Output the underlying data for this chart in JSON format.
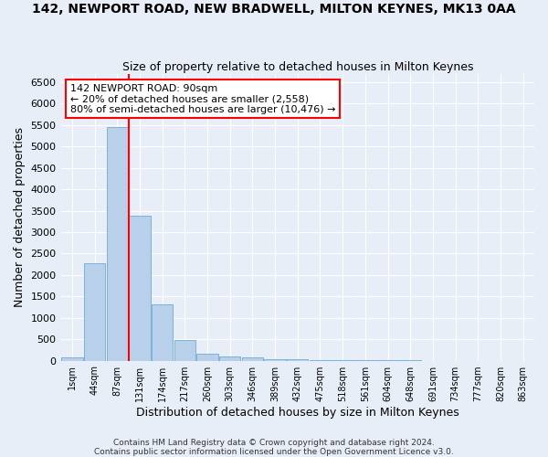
{
  "title": "142, NEWPORT ROAD, NEW BRADWELL, MILTON KEYNES, MK13 0AA",
  "subtitle": "Size of property relative to detached houses in Milton Keynes",
  "xlabel": "Distribution of detached houses by size in Milton Keynes",
  "ylabel": "Number of detached properties",
  "footer_line1": "Contains HM Land Registry data © Crown copyright and database right 2024.",
  "footer_line2": "Contains public sector information licensed under the Open Government Licence v3.0.",
  "bar_labels": [
    "1sqm",
    "44sqm",
    "87sqm",
    "131sqm",
    "174sqm",
    "217sqm",
    "260sqm",
    "303sqm",
    "346sqm",
    "389sqm",
    "432sqm",
    "475sqm",
    "518sqm",
    "561sqm",
    "604sqm",
    "648sqm",
    "691sqm",
    "734sqm",
    "777sqm",
    "820sqm",
    "863sqm"
  ],
  "bar_values": [
    75,
    2280,
    5450,
    3380,
    1310,
    480,
    165,
    95,
    70,
    35,
    25,
    15,
    10,
    5,
    3,
    2,
    1,
    1,
    0,
    0,
    0
  ],
  "bar_color": "#b8d0ea",
  "bar_edge_color": "#6baed6",
  "annotation_line1": "142 NEWPORT ROAD: 90sqm",
  "annotation_line2": "← 20% of detached houses are smaller (2,558)",
  "annotation_line3": "80% of semi-detached houses are larger (10,476) →",
  "annotation_box_color": "white",
  "annotation_box_edge": "red",
  "vline_color": "red",
  "vline_x": 2.5,
  "ylim_min": 0,
  "ylim_max": 6700,
  "yticks": [
    0,
    500,
    1000,
    1500,
    2000,
    2500,
    3000,
    3500,
    4000,
    4500,
    5000,
    5500,
    6000,
    6500
  ],
  "bg_color": "#e8eef8",
  "grid_color": "white",
  "title_fontsize": 10,
  "subtitle_fontsize": 9,
  "xlabel_fontsize": 9,
  "ylabel_fontsize": 9,
  "tick_fontsize": 7,
  "annotation_fontsize": 8,
  "footer_fontsize": 6.5
}
